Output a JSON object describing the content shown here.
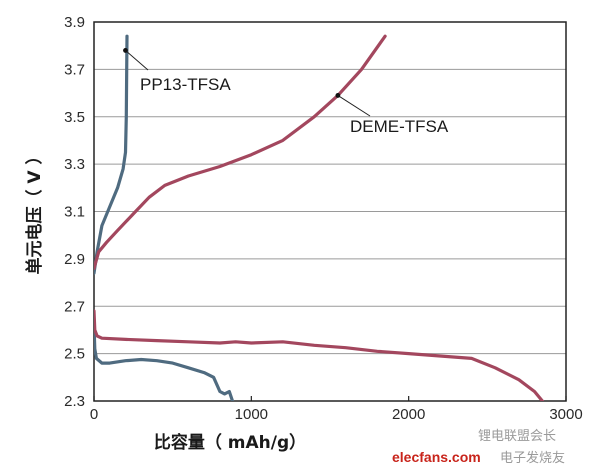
{
  "chart_data": {
    "type": "line",
    "title": "",
    "xlabel": "比容量（ mAh/g）",
    "ylabel": "单元电压（ V ）",
    "xlim": [
      0,
      3000
    ],
    "ylim": [
      2.3,
      3.9
    ],
    "x_ticks": [
      "0",
      "1000",
      "2000",
      "3000"
    ],
    "y_ticks": [
      "2.3",
      "2.5",
      "2.7",
      "2.9",
      "3.1",
      "3.3",
      "3.5",
      "3.7",
      "3.9"
    ],
    "grid": "horizontal",
    "legend": "none",
    "annotations": [
      {
        "text": "PP13-TFSA",
        "series": "PP13-TFSA",
        "x": 200,
        "y": 3.78
      },
      {
        "text": "DEME-TFSA",
        "series": "DEME-TFSA",
        "x": 1550,
        "y": 3.59
      }
    ],
    "series": [
      {
        "name": "PP13-TFSA",
        "color": "#4f6b80",
        "segments": [
          {
            "label": "charge",
            "points": [
              [
                0,
                2.84
              ],
              [
                20,
                2.93
              ],
              [
                50,
                3.04
              ],
              [
                100,
                3.12
              ],
              [
                150,
                3.2
              ],
              [
                185,
                3.28
              ],
              [
                200,
                3.35
              ],
              [
                205,
                3.5
              ],
              [
                208,
                3.7
              ],
              [
                210,
                3.84
              ]
            ]
          },
          {
            "label": "discharge",
            "points": [
              [
                0,
                2.62
              ],
              [
                5,
                2.52
              ],
              [
                15,
                2.48
              ],
              [
                50,
                2.46
              ],
              [
                100,
                2.46
              ],
              [
                200,
                2.47
              ],
              [
                300,
                2.475
              ],
              [
                400,
                2.47
              ],
              [
                500,
                2.46
              ],
              [
                600,
                2.44
              ],
              [
                700,
                2.42
              ],
              [
                760,
                2.4
              ],
              [
                800,
                2.34
              ],
              [
                830,
                2.33
              ],
              [
                860,
                2.34
              ],
              [
                880,
                2.3
              ]
            ]
          }
        ]
      },
      {
        "name": "DEME-TFSA",
        "color": "#a3475e",
        "segments": [
          {
            "label": "charge",
            "points": [
              [
                0,
                2.86
              ],
              [
                30,
                2.93
              ],
              [
                80,
                2.97
              ],
              [
                150,
                3.02
              ],
              [
                250,
                3.09
              ],
              [
                350,
                3.16
              ],
              [
                450,
                3.21
              ],
              [
                600,
                3.25
              ],
              [
                800,
                3.29
              ],
              [
                1000,
                3.34
              ],
              [
                1200,
                3.4
              ],
              [
                1400,
                3.5
              ],
              [
                1550,
                3.59
              ],
              [
                1700,
                3.7
              ],
              [
                1850,
                3.84
              ]
            ]
          },
          {
            "label": "discharge",
            "points": [
              [
                0,
                2.68
              ],
              [
                5,
                2.6
              ],
              [
                20,
                2.575
              ],
              [
                50,
                2.565
              ],
              [
                200,
                2.56
              ],
              [
                400,
                2.555
              ],
              [
                600,
                2.55
              ],
              [
                800,
                2.545
              ],
              [
                900,
                2.55
              ],
              [
                1000,
                2.545
              ],
              [
                1200,
                2.55
              ],
              [
                1400,
                2.535
              ],
              [
                1600,
                2.525
              ],
              [
                1800,
                2.51
              ],
              [
                2000,
                2.5
              ],
              [
                2200,
                2.49
              ],
              [
                2400,
                2.48
              ],
              [
                2550,
                2.44
              ],
              [
                2700,
                2.39
              ],
              [
                2800,
                2.34
              ],
              [
                2850,
                2.3
              ]
            ]
          }
        ]
      }
    ]
  },
  "watermark": {
    "site": "elecfans.com",
    "cn_label": "电子发烧友",
    "account": "锂电联盟会长"
  }
}
